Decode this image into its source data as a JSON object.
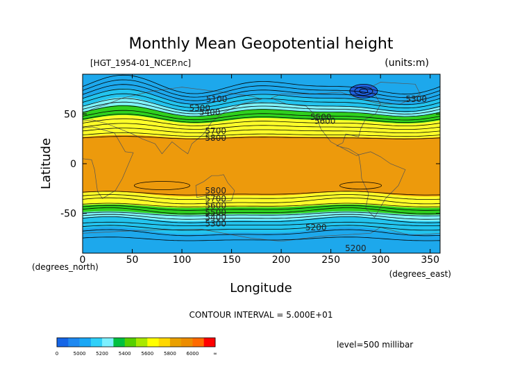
{
  "chart_data": {
    "type": "contour",
    "title": "Monthly Mean Geopotential height",
    "file_label": "[HGT_1954-01_NCEP.nc]",
    "units_label": "(units:m)",
    "xlabel": "Longitude",
    "ylabel": "Latitude",
    "x_unit_label": "(degrees_east)",
    "y_unit_label": "(degrees_north)",
    "xlim": [
      0,
      360
    ],
    "ylim": [
      -90,
      90
    ],
    "x_ticks": [
      {
        "value": 0,
        "label": "0"
      },
      {
        "value": 50,
        "label": "50"
      },
      {
        "value": 100,
        "label": "100"
      },
      {
        "value": 150,
        "label": "150"
      },
      {
        "value": 200,
        "label": "200"
      },
      {
        "value": 250,
        "label": "250"
      },
      {
        "value": 300,
        "label": "300"
      },
      {
        "value": 350,
        "label": "350"
      }
    ],
    "y_ticks": [
      {
        "value": 50,
        "label": "50"
      },
      {
        "value": 0,
        "label": "0"
      },
      {
        "value": -50,
        "label": "-50"
      }
    ],
    "contour_interval_label": "CONTOUR INTERVAL = 5.000E+01",
    "level_label": "level=500 millibar",
    "contour_labels": [
      {
        "text": "5100",
        "lon": 135,
        "lat": 62
      },
      {
        "text": "5300",
        "lon": 118,
        "lat": 53
      },
      {
        "text": "5400",
        "lon": 128,
        "lat": 49
      },
      {
        "text": "5500",
        "lon": 240,
        "lat": 44
      },
      {
        "text": "5600",
        "lon": 244,
        "lat": 40
      },
      {
        "text": "5300",
        "lon": 336,
        "lat": 62
      },
      {
        "text": "5700",
        "lon": 134,
        "lat": 30
      },
      {
        "text": "5800",
        "lon": 134,
        "lat": 23
      },
      {
        "text": "5800",
        "lon": 134,
        "lat": -30
      },
      {
        "text": "5700",
        "lon": 134,
        "lat": -38
      },
      {
        "text": "5600",
        "lon": 134,
        "lat": -45
      },
      {
        "text": "5500",
        "lon": 134,
        "lat": -52
      },
      {
        "text": "5400",
        "lon": 134,
        "lat": -57
      },
      {
        "text": "5300",
        "lon": 134,
        "lat": -63
      },
      {
        "text": "5200",
        "lon": 235,
        "lat": -67
      },
      {
        "text": "5200",
        "lon": 275,
        "lat": -88
      }
    ],
    "colorbar": {
      "tick_labels": [
        "0",
        "5000",
        "5200",
        "5400",
        "5600",
        "5800",
        "6000",
        "∞"
      ],
      "colors": [
        "#1565e6",
        "#1e88f0",
        "#19a7f5",
        "#2fd0f8",
        "#7df0ff",
        "#00c040",
        "#55d000",
        "#a8e800",
        "#ffff00",
        "#ffd700",
        "#e9a000",
        "#ec8c00",
        "#ff6a00",
        "#ff0000"
      ]
    },
    "fill_colors": {
      "tropical_high": "#ed9a0c",
      "subtropical": "#ffff29",
      "mid_green": "#2fd11e",
      "light_cyan": "#7ff2f9",
      "cyan": "#23c4ee",
      "blue": "#1da8ec",
      "polar_low": "#1e5fdc"
    }
  }
}
